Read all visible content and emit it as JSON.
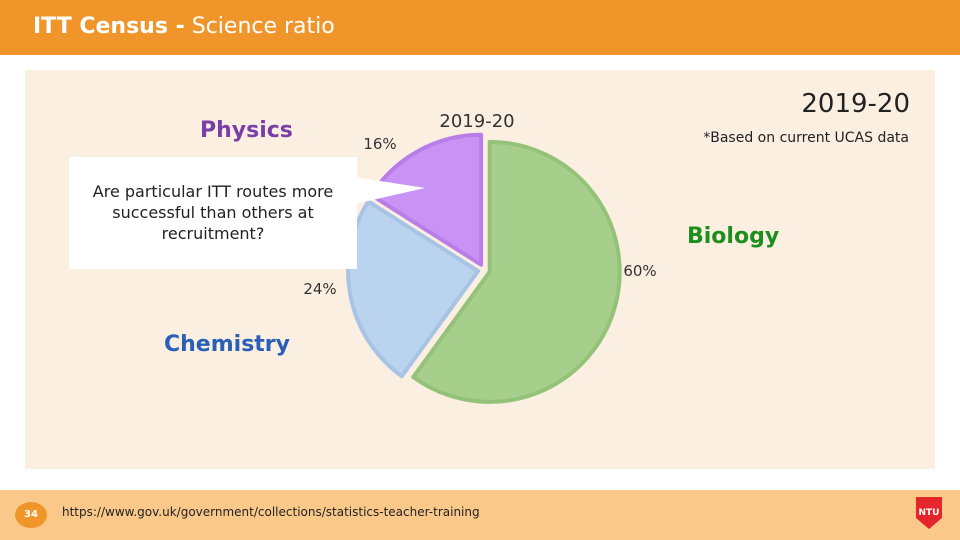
{
  "header": {
    "title_bold": "ITT Census -",
    "title_rest": "Science ratio"
  },
  "year_heading": "2019-20",
  "note": "*Based on current UCAS data",
  "subject_labels": {
    "physics": "Physics",
    "biology": "Biology",
    "chemistry": "Chemistry"
  },
  "callout": {
    "text": "Are particular ITT routes more successful than others at recruitment?"
  },
  "chart_data": {
    "type": "pie",
    "title": "2019-20",
    "slices": [
      {
        "label": "Physics",
        "value": 16,
        "display": "16%",
        "color": "#c993f5"
      },
      {
        "label": "Biology",
        "value": 60,
        "display": "60%",
        "color": "#a7cf8c"
      },
      {
        "label": "Chemistry",
        "value": 24,
        "display": "24%",
        "color": "#bad3ee"
      }
    ],
    "colors": {
      "physics_stroke": "#b87de8",
      "biology_stroke": "#94c278",
      "chemistry_stroke": "#a8c4e4"
    }
  },
  "footer": {
    "page_number": "34",
    "url": "https://www.gov.uk/government/collections/statistics-teacher-training",
    "logo_text": "NTU"
  },
  "colors": {
    "header": "#f0952a",
    "panel": "#fbefe1",
    "footer": "#fac98a"
  }
}
